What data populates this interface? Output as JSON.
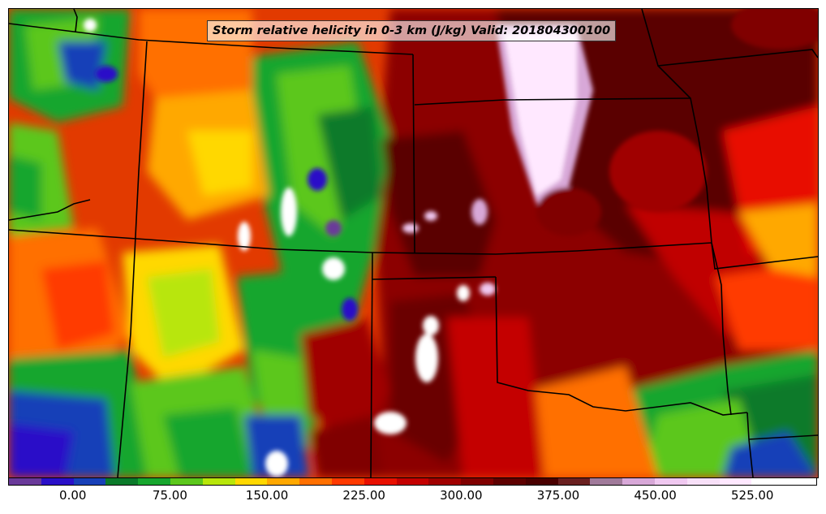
{
  "map": {
    "title": "Storm relative helicity in 0-3 km (J/kg) Valid: 201804300100",
    "field": "Storm relative helicity in 0-3 km",
    "units": "J/kg",
    "valid": "201804300100",
    "colorbar": {
      "colors": [
        "#6a3a9a",
        "#2a10c8",
        "#1840b8",
        "#0a7a2a",
        "#17a62e",
        "#5cc71c",
        "#b8e60a",
        "#ffd800",
        "#ffa800",
        "#ff7000",
        "#ff3a00",
        "#e81000",
        "#c40000",
        "#a00000",
        "#800000",
        "#5e0000",
        "#4a0000",
        "#6a2020",
        "#a07a9a",
        "#d8a8d8",
        "#f0c8f0",
        "#f8e0f8",
        "#ffe8ff",
        "#ffffff",
        "#ffffff"
      ],
      "tick_labels": [
        "0.00",
        "75.00",
        "150.00",
        "225.00",
        "300.00",
        "375.00",
        "450.00",
        "525.00"
      ],
      "tick_values": [
        0,
        75,
        150,
        225,
        300,
        375,
        450,
        525
      ],
      "range": [
        -50,
        575
      ]
    }
  }
}
